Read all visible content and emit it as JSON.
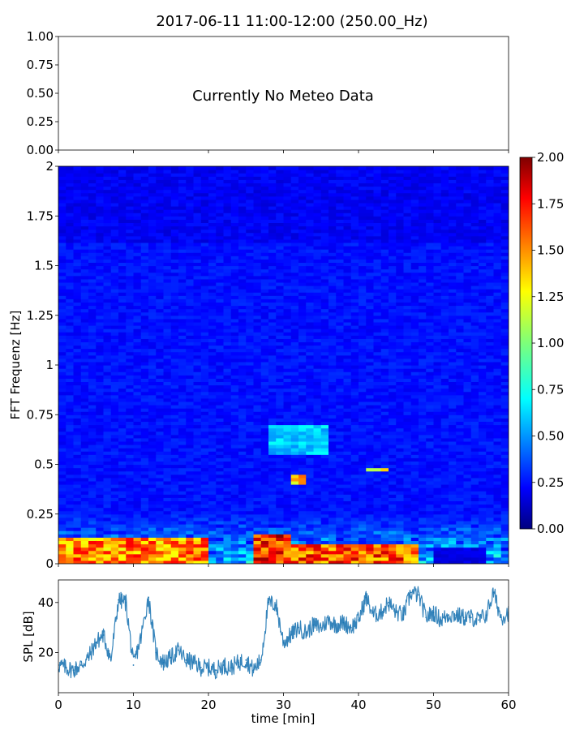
{
  "figure_title": "2017-06-11 11:00-12:00 (250.00_Hz)",
  "chart_data": [
    {
      "type": "text-panel",
      "message": "Currently No Meteo Data",
      "ylim": [
        0,
        1
      ],
      "yticks": [
        0.0,
        0.25,
        0.5,
        0.75,
        1.0
      ],
      "ytick_labels": [
        "0.00",
        "0.25",
        "0.50",
        "0.75",
        "1.00"
      ],
      "xlim": [
        0,
        60
      ],
      "grid": false
    },
    {
      "type": "heatmap",
      "xlabel": "",
      "ylabel": "FFT Frequenz [Hz]",
      "xlim": [
        0,
        60
      ],
      "ylim": [
        0,
        2
      ],
      "ytick_labels": [
        "0",
        "0.25",
        "0.5",
        "0.75",
        "1",
        "1.25",
        "1.5",
        "1.75",
        "2"
      ],
      "yticks": [
        0,
        0.25,
        0.5,
        0.75,
        1,
        1.25,
        1.5,
        1.75,
        2
      ],
      "colormap": "jet",
      "colorbar": {
        "range": [
          0,
          2
        ],
        "ticks": [
          0.0,
          0.25,
          0.5,
          0.75,
          1.0,
          1.25,
          1.5,
          1.75,
          2.0
        ],
        "tick_labels": [
          "0.00",
          "0.25",
          "0.50",
          "0.75",
          "1.00",
          "1.25",
          "1.50",
          "1.75",
          "2.00"
        ]
      },
      "features": [
        {
          "x": [
            0,
            20
          ],
          "y": [
            0,
            0.12
          ],
          "level": 1.6
        },
        {
          "x": [
            26,
            31
          ],
          "y": [
            0,
            0.15
          ],
          "level": 1.8
        },
        {
          "x": [
            31,
            48
          ],
          "y": [
            0,
            0.1
          ],
          "level": 1.7
        },
        {
          "x": [
            31,
            33
          ],
          "y": [
            0.4,
            0.45
          ],
          "level": 1.5
        },
        {
          "x": [
            41,
            44
          ],
          "y": [
            0.46,
            0.48
          ],
          "level": 1.4
        },
        {
          "x": [
            28,
            36
          ],
          "y": [
            0.55,
            0.7
          ],
          "level": 0.7
        }
      ]
    },
    {
      "type": "line",
      "xlabel": "time [min]",
      "ylabel": "SPL [dB]",
      "xlim": [
        0,
        60
      ],
      "ylim": [
        4,
        49
      ],
      "xticks": [
        0,
        10,
        20,
        30,
        40,
        50,
        60
      ],
      "xtick_labels": [
        "0",
        "10",
        "20",
        "30",
        "40",
        "50",
        "60"
      ],
      "yticks": [
        20,
        40
      ],
      "ytick_labels": [
        "20",
        "40"
      ],
      "color": "#1f77b4",
      "series": [
        {
          "x": [
            0,
            1,
            2,
            3,
            4,
            5,
            6,
            7,
            8,
            9,
            10,
            11,
            12,
            13,
            14,
            15,
            16,
            17,
            18,
            19,
            20,
            21,
            22,
            23,
            24,
            25,
            26,
            27,
            28,
            29,
            30,
            31,
            32,
            33,
            34,
            35,
            36,
            37,
            38,
            39,
            40,
            41,
            42,
            43,
            44,
            45,
            46,
            47,
            48,
            49,
            50,
            51,
            52,
            53,
            54,
            55,
            56,
            57,
            58,
            59,
            60
          ],
          "y": [
            15,
            14,
            13,
            15,
            18,
            24,
            27,
            17,
            41,
            40,
            15,
            26,
            42,
            20,
            16,
            18,
            21,
            17,
            16,
            14,
            14,
            13,
            15,
            14,
            16,
            17,
            13,
            17,
            40,
            39,
            24,
            27,
            30,
            28,
            31,
            30,
            33,
            31,
            32,
            30,
            33,
            42,
            35,
            36,
            40,
            36,
            35,
            44,
            43,
            34,
            36,
            33,
            35,
            35,
            34,
            34,
            33,
            35,
            44,
            34,
            36
          ]
        }
      ]
    }
  ]
}
